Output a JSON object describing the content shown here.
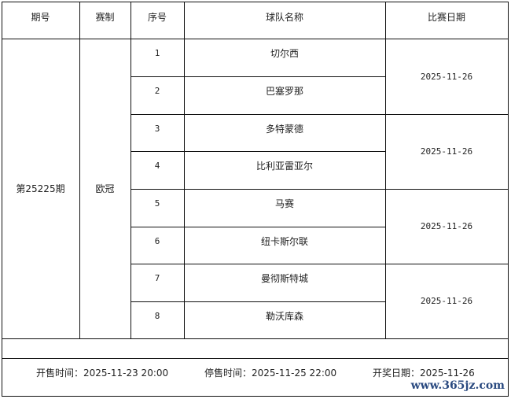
{
  "headers": [
    "期号",
    "赛制",
    "序号",
    "球队名称",
    "比赛日期"
  ],
  "issue": "第25225期",
  "format": "欧冠",
  "teams": [
    {
      "no": "1",
      "name": "切尔西"
    },
    {
      "no": "2",
      "name": "巴塞罗那"
    },
    {
      "no": "3",
      "name": "多特蒙德"
    },
    {
      "no": "4",
      "name": "比利亚雷亚尔"
    },
    {
      "no": "5",
      "name": "马赛"
    },
    {
      "no": "6",
      "name": "纽卡斯尔联"
    },
    {
      "no": "7",
      "name": "曼彻斯特城"
    },
    {
      "no": "8",
      "name": "勒沃库森"
    }
  ],
  "match_dates": [
    "2025-11-26",
    "2025-11-26",
    "2025-11-26",
    "2025-11-26"
  ],
  "footer": {
    "sale_start": "开售时间：2025-11-23 20:00",
    "sale_end": "停售时间：2025-11-25 22:00",
    "draw_date": "开奖日期：2025-11-26"
  },
  "watermark": "www.365jz.com"
}
